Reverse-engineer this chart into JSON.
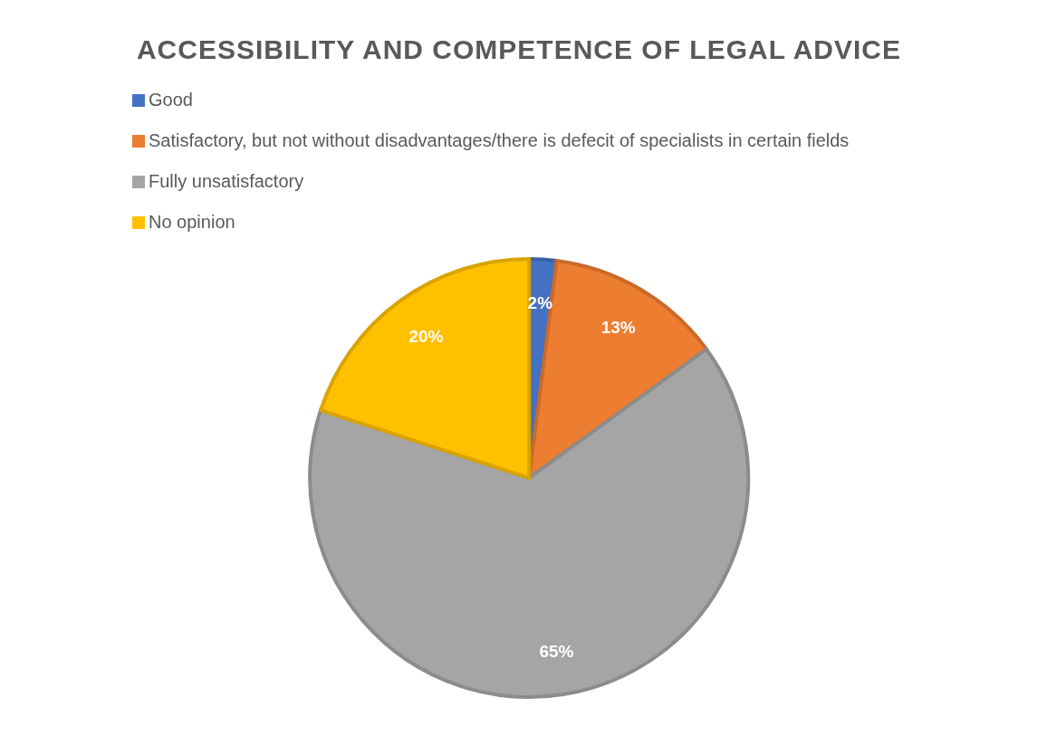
{
  "chart_data": {
    "type": "pie",
    "title": "ACCESSIBILITY AND COMPETENCE OF LEGAL ADVICE",
    "categories": [
      "Good",
      "Satisfactory, but not without disadvantages/there is defecit of specialists in certain fields",
      "Fully unsatisfactory",
      "No opinion"
    ],
    "values": [
      2,
      13,
      65,
      20
    ],
    "colors": [
      "#4472c4",
      "#ed7d31",
      "#a5a5a5",
      "#ffc000"
    ],
    "value_labels": [
      "2%",
      "13%",
      "65%",
      "20%"
    ],
    "legend": "top left"
  }
}
